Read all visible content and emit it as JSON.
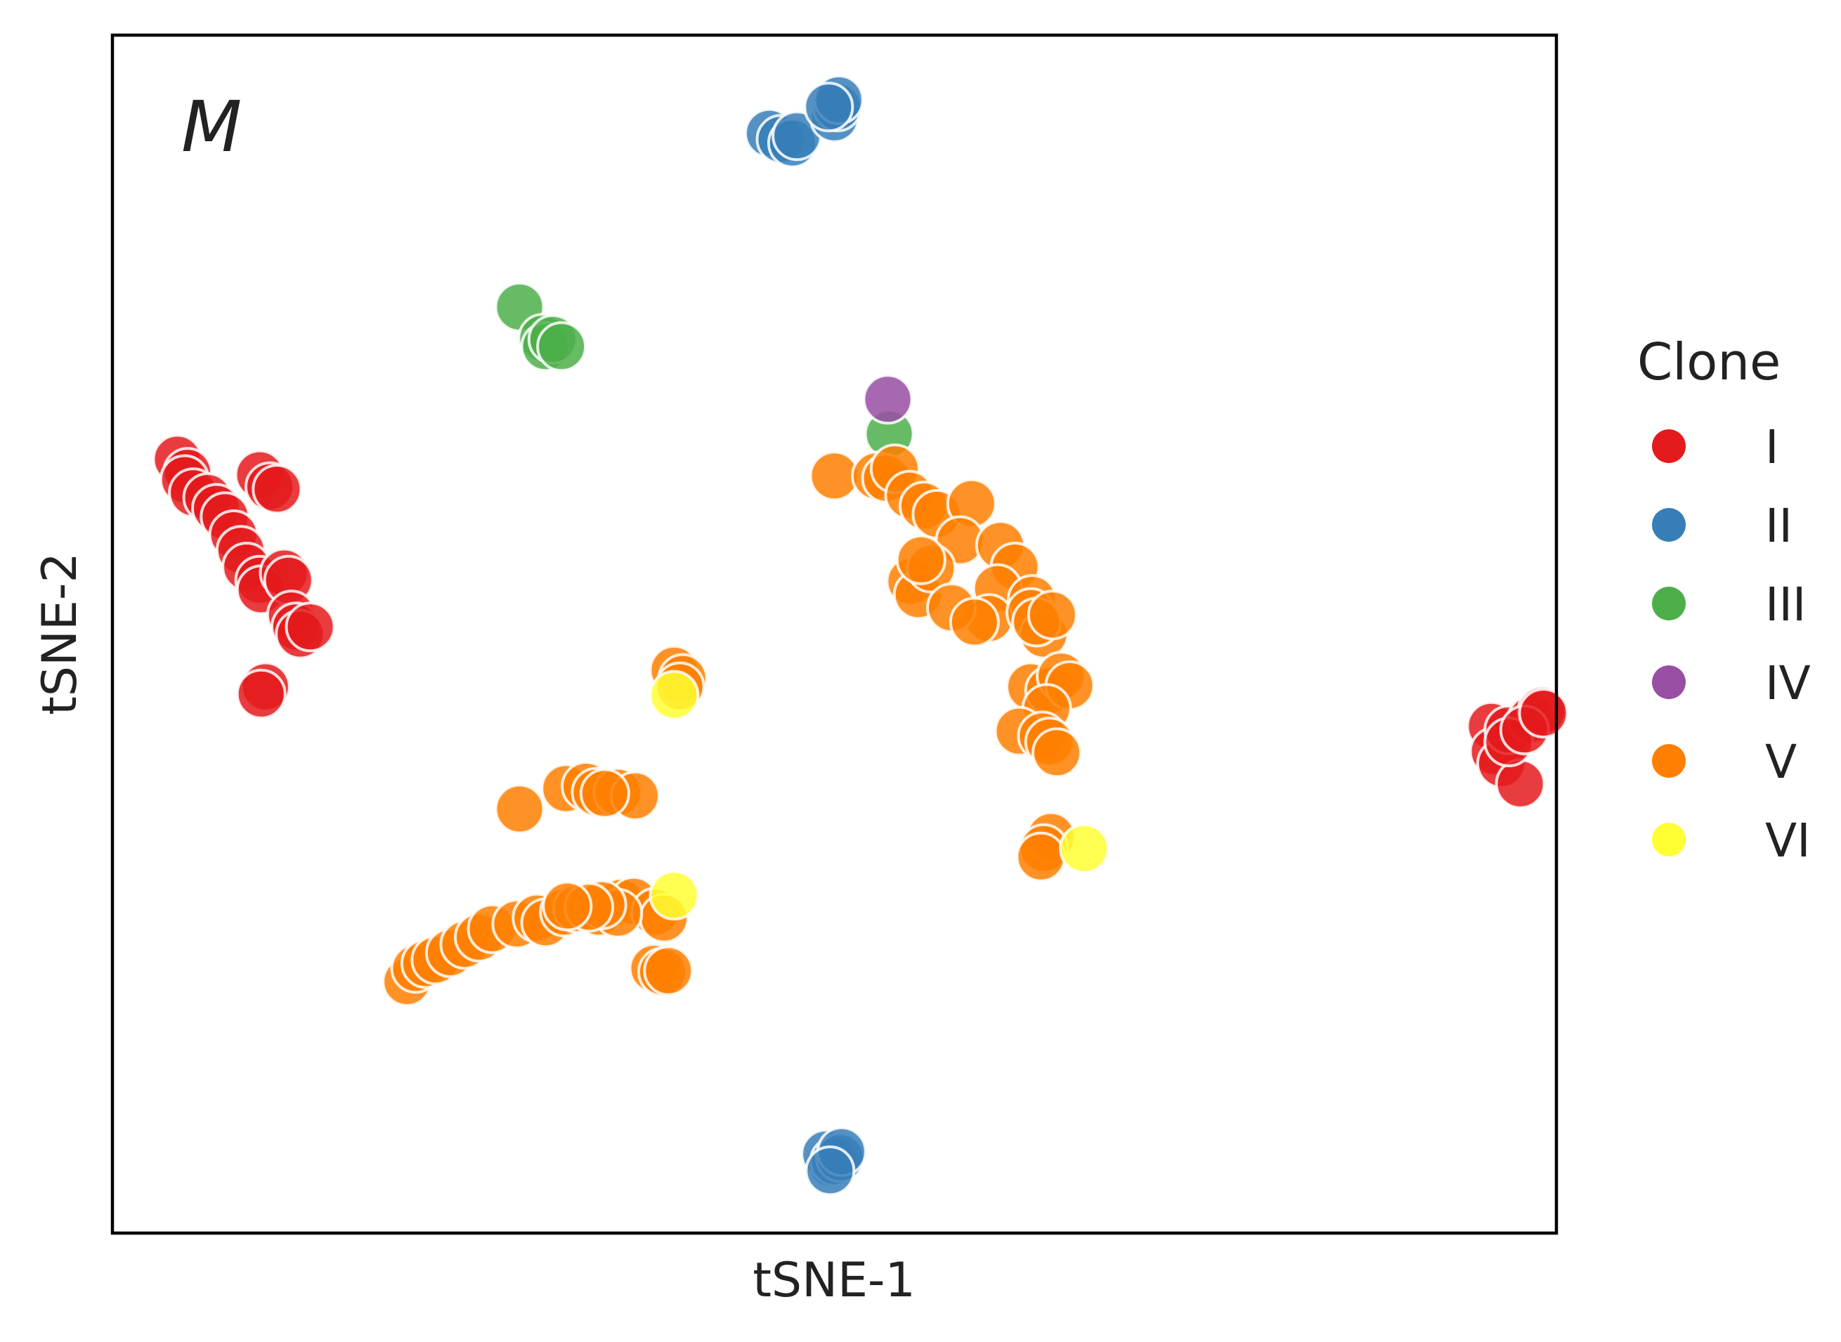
{
  "chart_data": {
    "type": "scatter",
    "xlabel": "tSNE-1",
    "ylabel": "tSNE-2",
    "panel_label": "M",
    "xlim": [
      0,
      100
    ],
    "ylim": [
      0,
      100
    ],
    "grid": false,
    "axis_ticks": false,
    "legend": {
      "title": "Clone",
      "placement": "right-outside"
    },
    "series": [
      {
        "name": "I",
        "color": "#e41a1c",
        "points": [
          [
            4.5,
            64.6
          ],
          [
            5.2,
            63.5
          ],
          [
            5.0,
            62.9
          ],
          [
            5.6,
            61.8
          ],
          [
            6.6,
            61.4
          ],
          [
            7.2,
            60.5
          ],
          [
            7.8,
            59.8
          ],
          [
            8.4,
            58.3
          ],
          [
            8.9,
            57.0
          ],
          [
            9.3,
            55.6
          ],
          [
            10.2,
            54.5
          ],
          [
            10.3,
            53.7
          ],
          [
            11.9,
            55.1
          ],
          [
            12.2,
            54.5
          ],
          [
            12.4,
            51.6
          ],
          [
            12.7,
            50.6
          ],
          [
            13.0,
            50.0
          ],
          [
            13.7,
            50.6
          ],
          [
            10.2,
            63.3
          ],
          [
            10.9,
            62.3
          ],
          [
            11.4,
            62.1
          ],
          [
            10.6,
            45.6
          ],
          [
            10.3,
            45.0
          ],
          [
            95.5,
            42.3
          ],
          [
            95.7,
            40.2
          ],
          [
            96.2,
            39.2
          ],
          [
            97.5,
            37.5
          ],
          [
            96.7,
            42.0
          ],
          [
            98.3,
            42.9
          ],
          [
            99.0,
            43.6
          ],
          [
            96.7,
            41.0
          ],
          [
            97.8,
            42.0
          ],
          [
            99.1,
            43.4
          ]
        ]
      },
      {
        "name": "II",
        "color": "#377eb8",
        "points": [
          [
            45.5,
            91.8
          ],
          [
            46.3,
            91.3
          ],
          [
            47.1,
            91.0
          ],
          [
            47.4,
            91.6
          ],
          [
            50.0,
            93.1
          ],
          [
            50.2,
            94.0
          ],
          [
            50.3,
            94.6
          ],
          [
            49.6,
            94.0
          ],
          [
            49.8,
            5.8
          ],
          [
            49.4,
            6.6
          ],
          [
            50.0,
            6.0
          ],
          [
            50.4,
            6.3
          ],
          [
            50.5,
            6.8
          ],
          [
            49.7,
            5.2
          ]
        ]
      },
      {
        "name": "III",
        "color": "#4daf4a",
        "points": [
          [
            28.2,
            77.3
          ],
          [
            29.8,
            74.7
          ],
          [
            30.0,
            74.0
          ],
          [
            30.5,
            74.6
          ],
          [
            31.1,
            74.0
          ],
          [
            53.8,
            66.7
          ]
        ]
      },
      {
        "name": "IV",
        "color": "#984ea3",
        "points": [
          [
            53.7,
            69.6
          ]
        ]
      },
      {
        "name": "V",
        "color": "#ff7f00",
        "points": [
          [
            50.0,
            63.2
          ],
          [
            52.9,
            63.2
          ],
          [
            53.6,
            63.0
          ],
          [
            54.2,
            63.8
          ],
          [
            55.2,
            61.6
          ],
          [
            56.2,
            60.7
          ],
          [
            57.1,
            60.0
          ],
          [
            59.5,
            60.9
          ],
          [
            58.7,
            57.8
          ],
          [
            61.5,
            57.4
          ],
          [
            62.5,
            55.6
          ],
          [
            61.3,
            53.8
          ],
          [
            60.7,
            51.3
          ],
          [
            55.3,
            54.4
          ],
          [
            55.8,
            53.3
          ],
          [
            56.7,
            55.5
          ],
          [
            56.0,
            56.2
          ],
          [
            58.1,
            52.2
          ],
          [
            59.7,
            51.0
          ],
          [
            63.7,
            52.9
          ],
          [
            63.6,
            51.8
          ],
          [
            64.5,
            50.0
          ],
          [
            64.0,
            51.0
          ],
          [
            65.1,
            51.6
          ],
          [
            63.6,
            45.6
          ],
          [
            64.9,
            45.3
          ],
          [
            65.7,
            46.5
          ],
          [
            66.3,
            45.7
          ],
          [
            64.7,
            43.8
          ],
          [
            62.8,
            41.9
          ],
          [
            64.4,
            41.5
          ],
          [
            64.9,
            41.0
          ],
          [
            65.4,
            40.1
          ],
          [
            65.0,
            33.1
          ],
          [
            64.5,
            32.1
          ],
          [
            64.3,
            31.4
          ],
          [
            38.9,
            47.0
          ],
          [
            39.5,
            46.3
          ],
          [
            39.3,
            45.6
          ],
          [
            28.2,
            35.4
          ],
          [
            31.4,
            37.1
          ],
          [
            32.8,
            37.3
          ],
          [
            33.5,
            36.8
          ],
          [
            35.0,
            36.8
          ],
          [
            36.2,
            36.5
          ],
          [
            34.1,
            36.7
          ],
          [
            20.4,
            21.0
          ],
          [
            21.0,
            22.1
          ],
          [
            21.7,
            22.5
          ],
          [
            22.4,
            22.8
          ],
          [
            23.4,
            23.4
          ],
          [
            24.4,
            24.1
          ],
          [
            25.4,
            24.7
          ],
          [
            26.3,
            25.4
          ],
          [
            28.0,
            25.8
          ],
          [
            29.4,
            26.3
          ],
          [
            30.0,
            25.9
          ],
          [
            31.3,
            26.8
          ],
          [
            32.2,
            27.1
          ],
          [
            33.7,
            26.8
          ],
          [
            35.2,
            27.6
          ],
          [
            36.1,
            27.7
          ],
          [
            37.6,
            26.8
          ],
          [
            38.2,
            26.3
          ],
          [
            37.5,
            22.1
          ],
          [
            38.1,
            21.8
          ],
          [
            38.5,
            21.9
          ],
          [
            35.0,
            26.7
          ],
          [
            33.9,
            27.4
          ],
          [
            33.0,
            27.2
          ],
          [
            31.5,
            27.3
          ]
        ]
      },
      {
        "name": "VI",
        "color": "#ffff33",
        "points": [
          [
            38.9,
            44.9
          ],
          [
            38.9,
            28.2
          ],
          [
            67.3,
            32.1
          ]
        ]
      }
    ]
  }
}
